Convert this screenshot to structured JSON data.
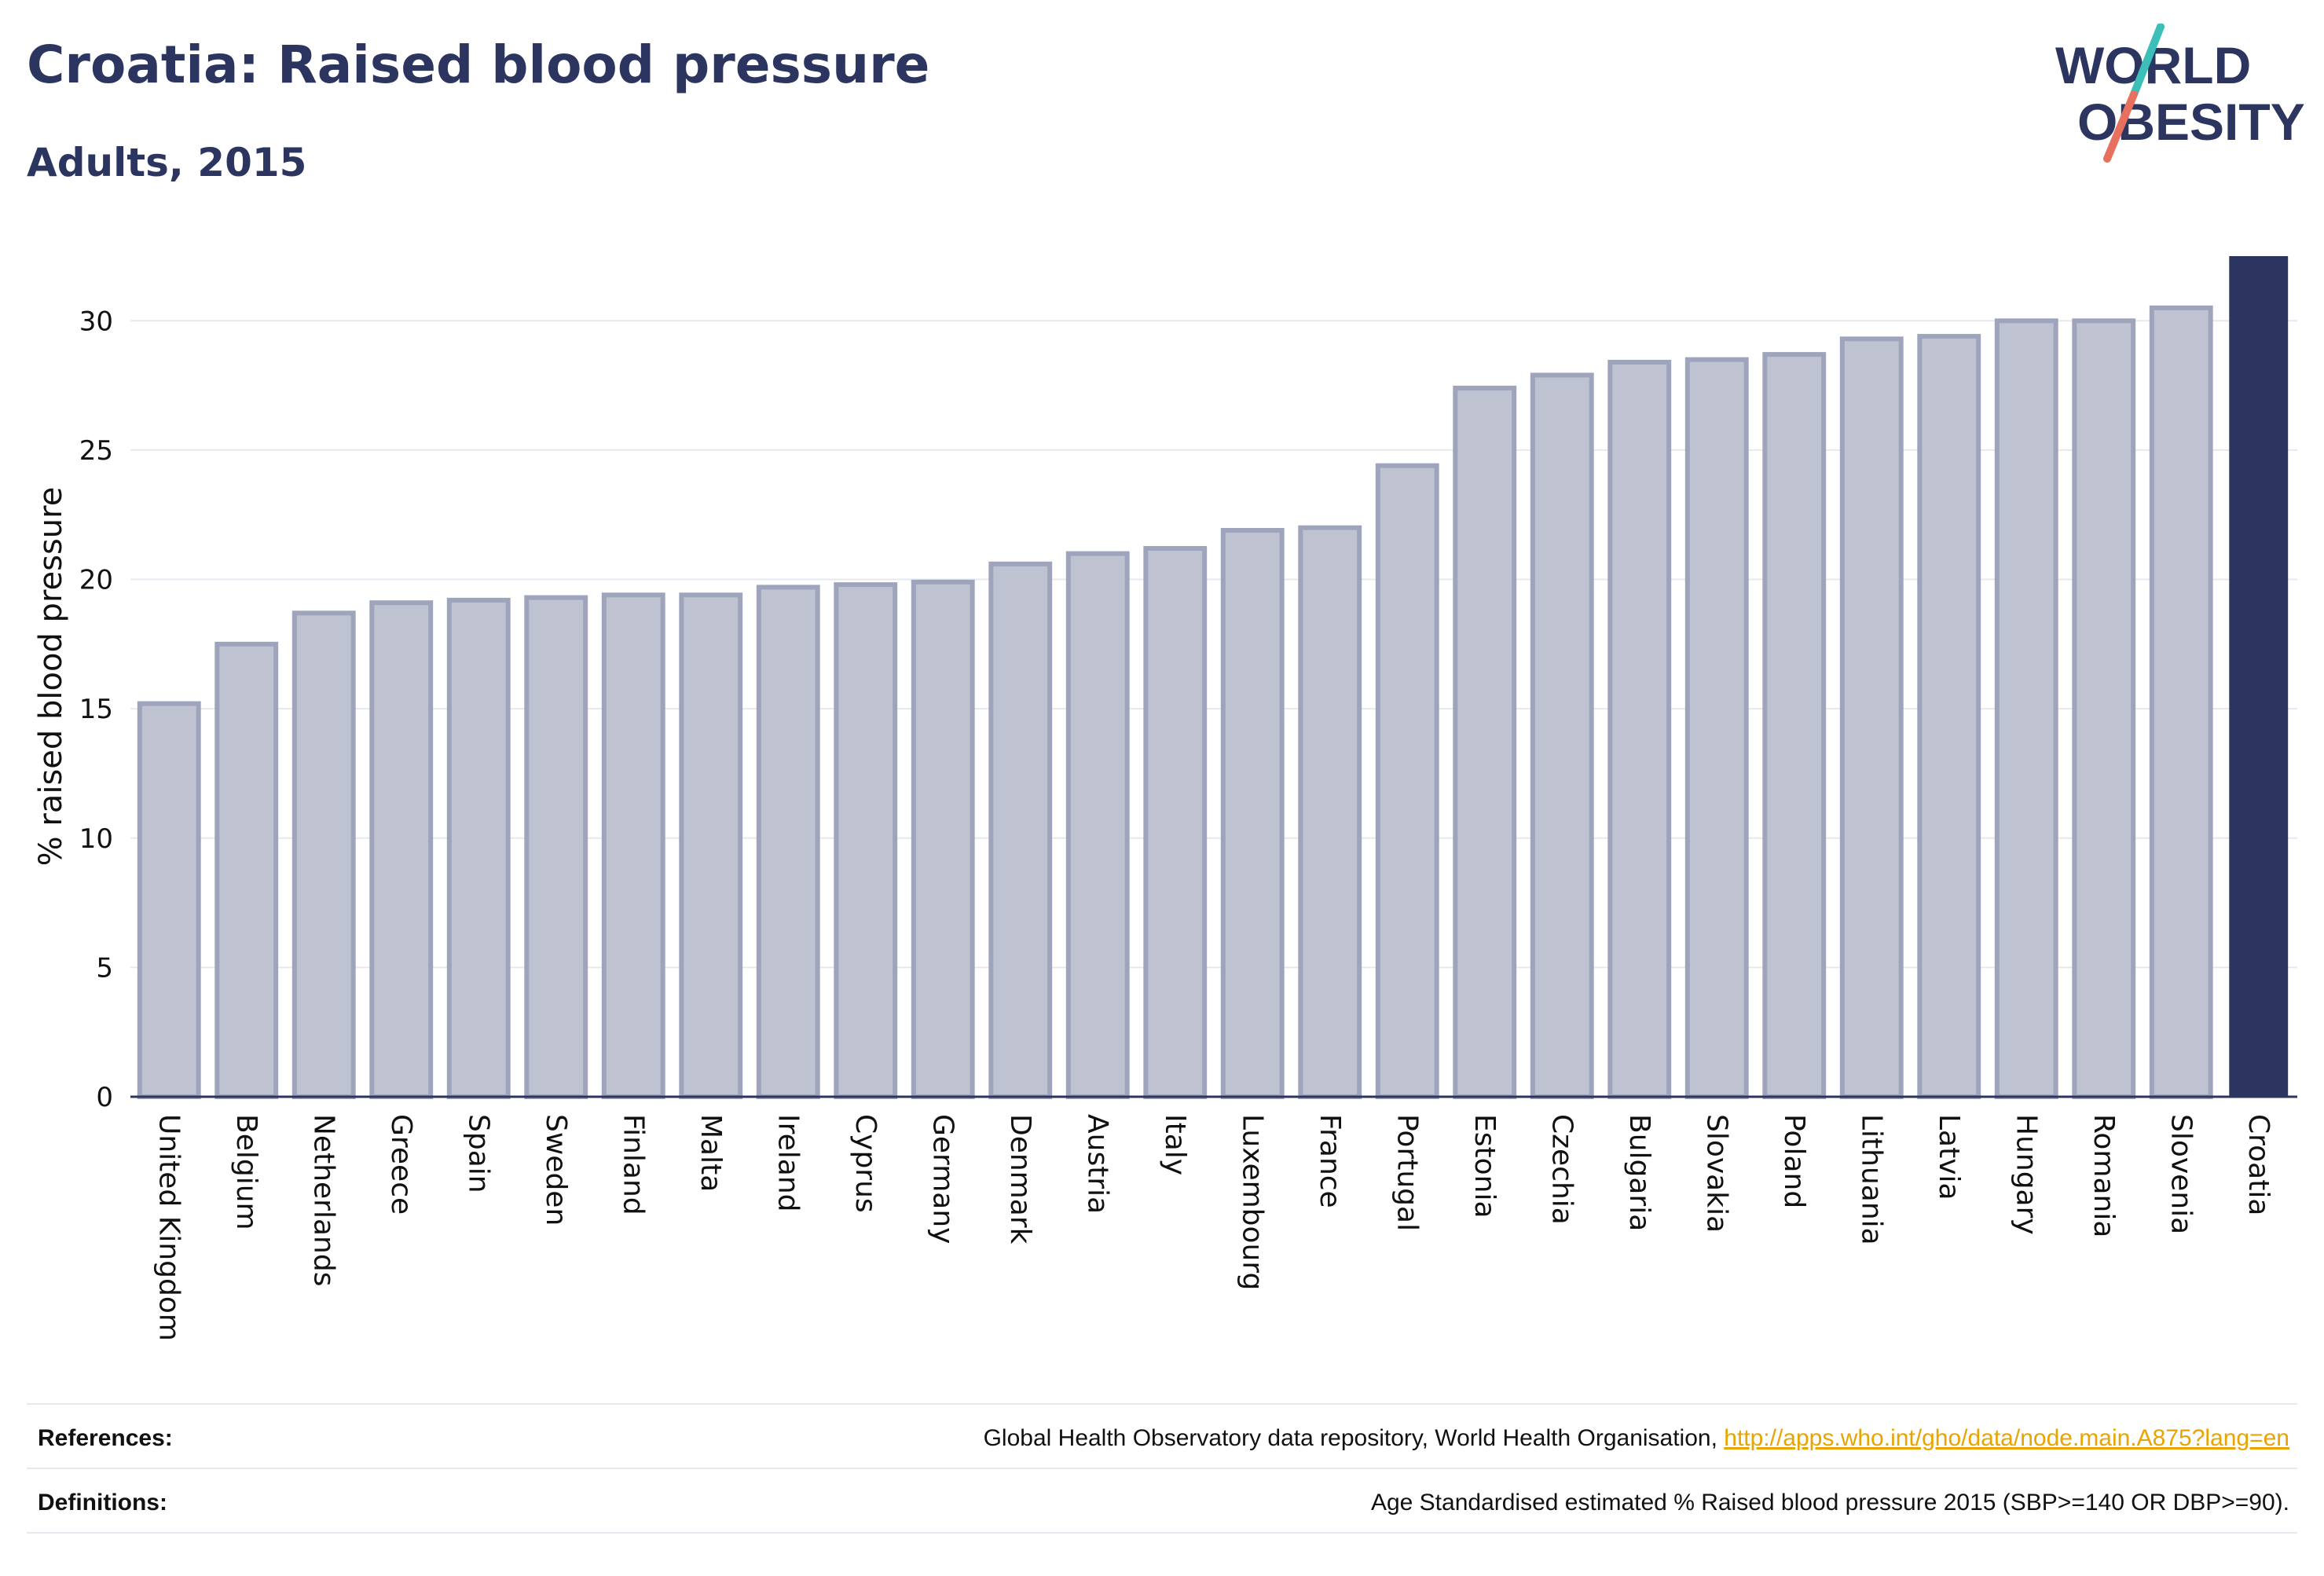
{
  "header": {
    "title": "Croatia: Raised blood pressure",
    "subtitle": "Adults, 2015"
  },
  "logo": {
    "line1": "WORLD",
    "line2": "OBESITY",
    "colors": {
      "text": "#2c3560",
      "slash_teal": "#3bbfb8",
      "slash_coral": "#e8705f"
    }
  },
  "colors": {
    "bar_default": "#bfc3d1",
    "bar_default_stroke": "#9ea4bb",
    "bar_highlight": "#2c3560",
    "grid": "#e6e8ef",
    "axis": "#2c3560",
    "text": "#111111"
  },
  "chart_data": {
    "type": "bar",
    "ylabel": "% raised blood pressure",
    "xlabel": "",
    "ylim": [
      0,
      32.5
    ],
    "yticks": [
      0,
      5,
      10,
      15,
      20,
      25,
      30
    ],
    "grid": true,
    "highlight": "Croatia",
    "categories": [
      "United Kingdom",
      "Belgium",
      "Netherlands",
      "Greece",
      "Spain",
      "Sweden",
      "Finland",
      "Malta",
      "Ireland",
      "Cyprus",
      "Germany",
      "Denmark",
      "Austria",
      "Italy",
      "Luxembourg",
      "France",
      "Portugal",
      "Estonia",
      "Czechia",
      "Bulgaria",
      "Slovakia",
      "Poland",
      "Lithuania",
      "Latvia",
      "Hungary",
      "Romania",
      "Slovenia",
      "Croatia"
    ],
    "values": [
      15.2,
      17.5,
      18.7,
      19.1,
      19.2,
      19.3,
      19.4,
      19.4,
      19.7,
      19.8,
      19.9,
      20.6,
      21.0,
      21.2,
      21.9,
      22.0,
      24.4,
      27.4,
      27.9,
      28.4,
      28.5,
      28.7,
      29.3,
      29.4,
      30.0,
      30.0,
      30.5,
      32.5
    ]
  },
  "footer": {
    "references_label": "References:",
    "references_text": "Global Health Observatory data repository, World Health Organisation, ",
    "references_link": "http://apps.who.int/gho/data/node.main.A875?lang=en",
    "definitions_label": "Definitions:",
    "definitions_text": "Age Standardised estimated % Raised blood pressure 2015 (SBP>=140 OR DBP>=90)."
  }
}
